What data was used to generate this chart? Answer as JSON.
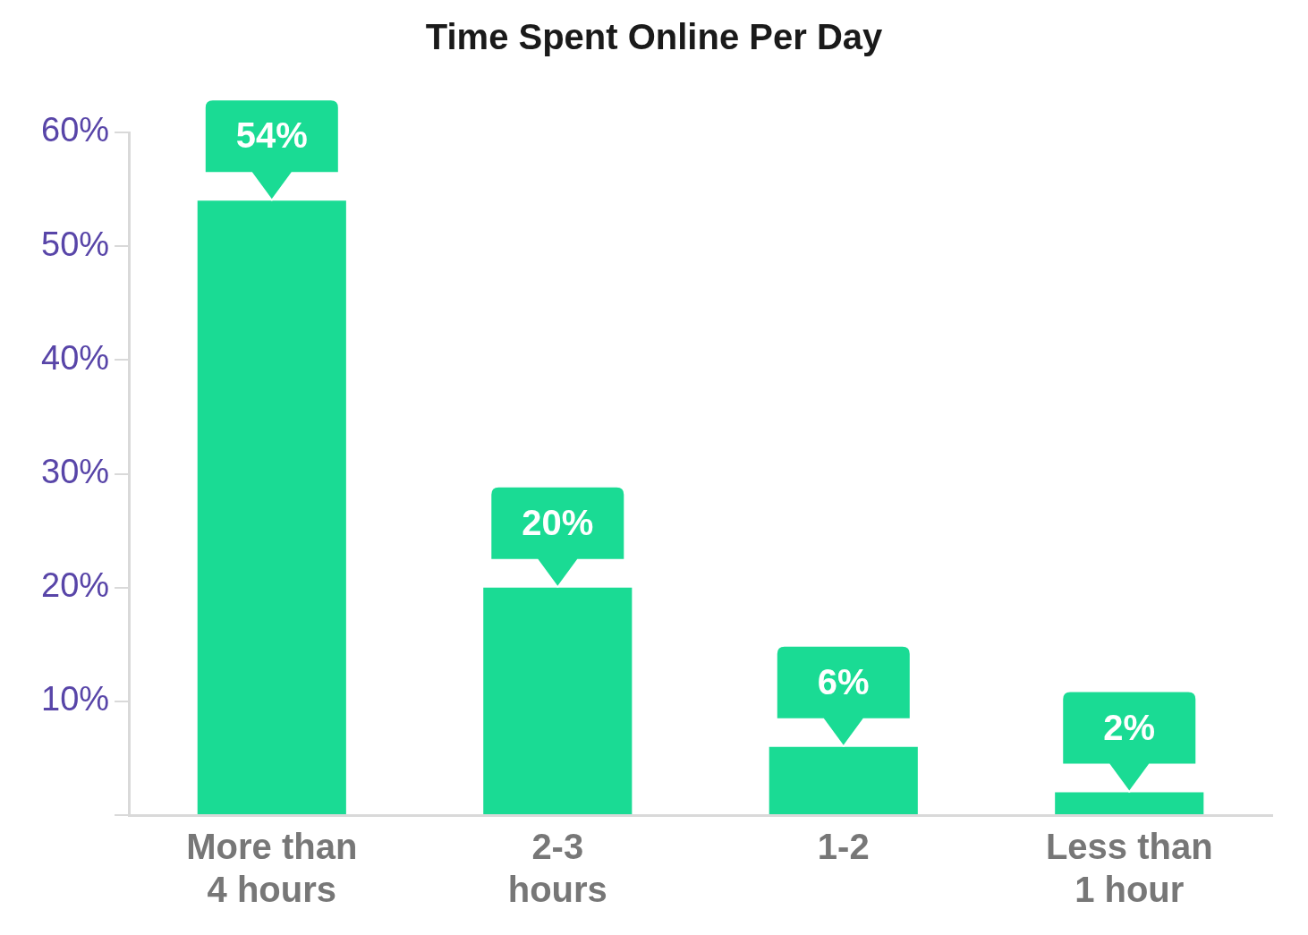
{
  "chart_data": {
    "type": "bar",
    "title": "Time Spent Online Per Day",
    "categories": [
      "More than\n4 hours",
      "2-3\nhours",
      "1-2",
      "Less than\n1 hour"
    ],
    "values": [
      54,
      20,
      6,
      2
    ],
    "color": "#1adb94",
    "ylim": [
      0,
      60
    ],
    "yticks": [
      {
        "value": 0,
        "label": null
      },
      {
        "value": 10,
        "label": "10%"
      },
      {
        "value": 20,
        "label": "20%"
      },
      {
        "value": 30,
        "label": "30%"
      },
      {
        "value": 40,
        "label": "40%"
      },
      {
        "value": 50,
        "label": "50%"
      },
      {
        "value": 60,
        "label": "60%"
      }
    ],
    "grid": false,
    "legend": false,
    "value_labels": [
      "54%",
      "20%",
      "6%",
      "2%"
    ]
  }
}
